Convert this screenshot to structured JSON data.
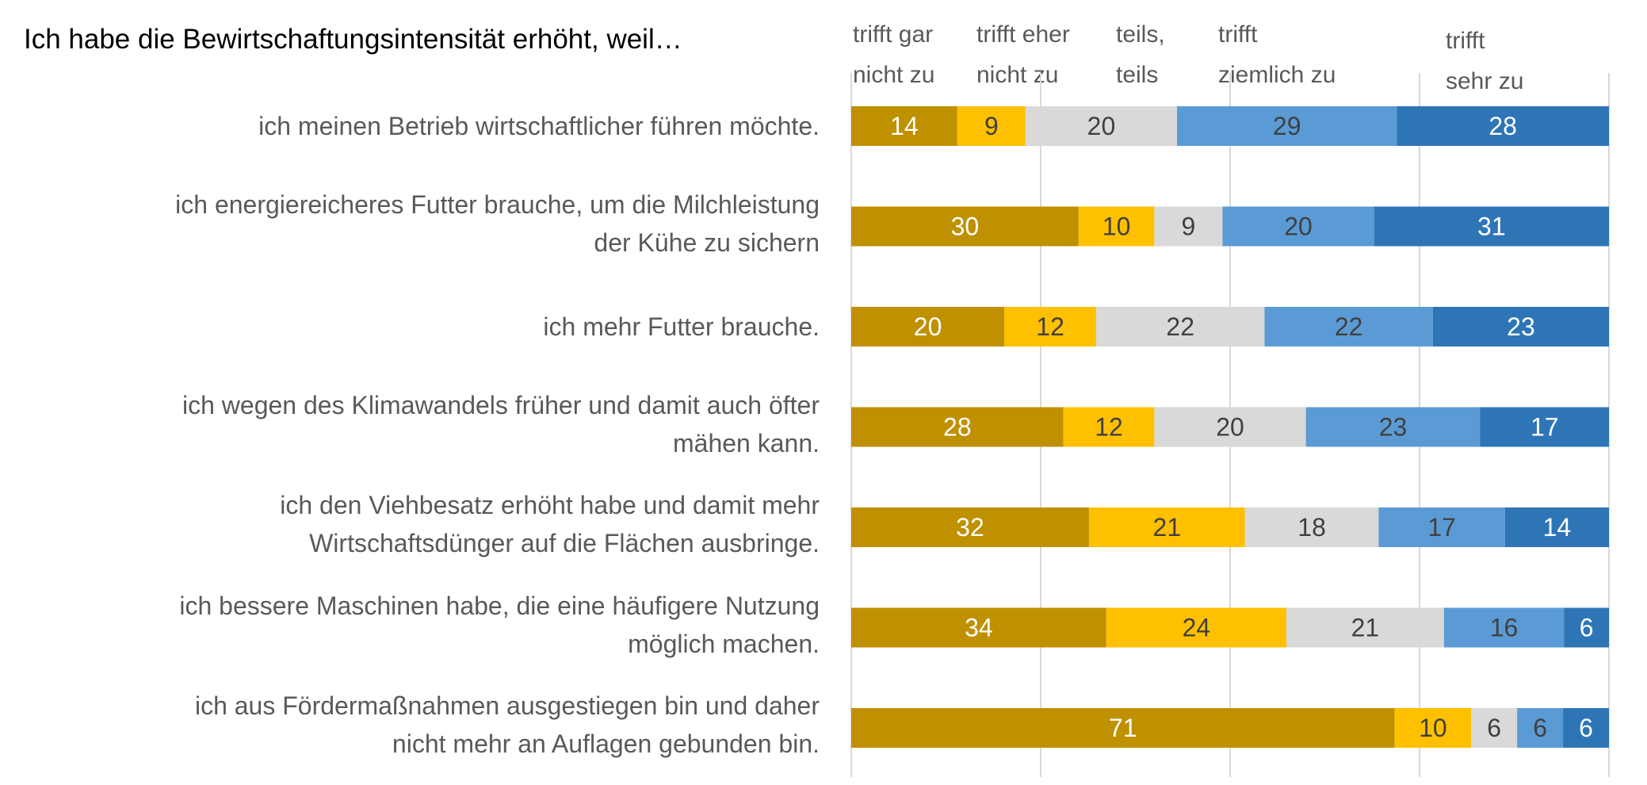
{
  "chart_data": {
    "type": "bar",
    "orientation": "horizontal",
    "stacked": true,
    "percent": true,
    "title": "Ich habe die Bewirtschaftungsintensität erhöht, weil…",
    "xlim": [
      0,
      100
    ],
    "grid": true,
    "legend_placement": "top",
    "categories": [
      "ich meinen Betrieb wirtschaftlicher führen möchte.",
      "ich energiereicheres Futter brauche, um die Milchleistung der Kühe zu sichern",
      "ich mehr Futter brauche.",
      "ich wegen des Klimawandels früher und damit auch öfter mähen kann.",
      "ich den Viehbesatz erhöht habe und damit mehr Wirtschaftsdünger auf die Flächen ausbringe.",
      "ich bessere Maschinen habe, die eine häufigere Nutzung möglich machen.",
      "ich aus Fördermaßnahmen ausgestiegen bin und daher nicht mehr an Auflagen gebunden bin."
    ],
    "category_lines": [
      [
        "ich meinen Betrieb wirtschaftlicher führen möchte."
      ],
      [
        "ich energiereicheres Futter brauche, um die Milchleistung",
        "der Kühe zu sichern"
      ],
      [
        "ich mehr Futter brauche."
      ],
      [
        "ich wegen des Klimawandels früher und damit auch öfter",
        "mähen kann."
      ],
      [
        "ich den Viehbesatz erhöht habe und damit mehr",
        "Wirtschaftsdünger auf die Flächen ausbringe."
      ],
      [
        "ich bessere Maschinen habe, die eine häufigere Nutzung",
        "möglich machen."
      ],
      [
        "ich aus Fördermaßnahmen ausgestiegen bin und daher",
        "nicht mehr an Auflagen gebunden bin."
      ]
    ],
    "series": [
      {
        "name": "trifft gar nicht zu",
        "name_lines": [
          "trifft gar",
          "nicht zu"
        ],
        "color": "#BF9000",
        "label_color": "#FFFFFF",
        "values": [
          14,
          30,
          20,
          28,
          32,
          34,
          71
        ]
      },
      {
        "name": "trifft eher nicht zu",
        "name_lines": [
          "trifft eher",
          "nicht zu"
        ],
        "color": "#FFC000",
        "label_color": "#404040",
        "values": [
          9,
          10,
          12,
          12,
          21,
          24,
          10
        ]
      },
      {
        "name": "teils, teils",
        "name_lines": [
          "teils,",
          "teils"
        ],
        "color": "#D9D9D9",
        "label_color": "#404040",
        "values": [
          20,
          9,
          22,
          20,
          18,
          21,
          6
        ]
      },
      {
        "name": "trifft ziemlich zu",
        "name_lines": [
          "trifft",
          "ziemlich zu"
        ],
        "color": "#5B9BD5",
        "label_color": "#404040",
        "values": [
          29,
          20,
          22,
          23,
          17,
          16,
          6
        ]
      },
      {
        "name": "trifft sehr zu",
        "name_lines": [
          "trifft",
          "sehr zu"
        ],
        "color": "#2E75B6",
        "label_color": "#FFFFFF",
        "values": [
          28,
          31,
          23,
          17,
          14,
          6,
          6
        ]
      }
    ]
  }
}
